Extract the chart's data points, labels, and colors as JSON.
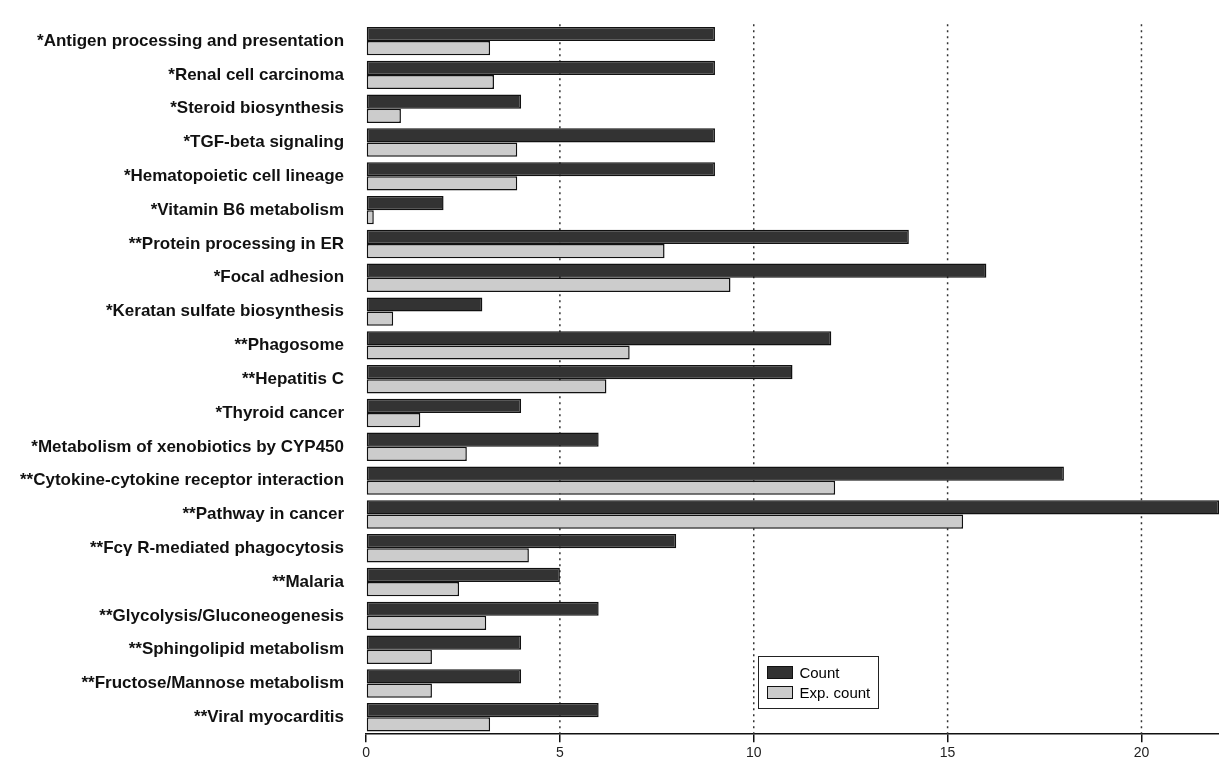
{
  "chart_data": {
    "type": "bar",
    "orientation": "horizontal",
    "categories": [
      "*Antigen processing and presentation",
      "*Renal cell carcinoma",
      "*Steroid biosynthesis",
      "*TGF-beta signaling",
      "*Hematopoietic cell lineage",
      "*Vitamin B6 metabolism",
      "**Protein processing in ER",
      "*Focal adhesion",
      "*Keratan sulfate biosynthesis",
      "**Phagosome",
      "**Hepatitis C",
      "*Thyroid cancer",
      "*Metabolism of xenobiotics by CYP450",
      "**Cytokine-cytokine receptor interaction",
      "**Pathway in cancer",
      "**Fcγ R-mediated phagocytosis",
      "**Malaria",
      "**Glycolysis/Gluconeogenesis",
      "**Sphingolipid metabolism",
      "**Fructose/Mannose metabolism",
      "**Viral myocarditis"
    ],
    "series": [
      {
        "name": "Count",
        "color": "#333333",
        "values": [
          9,
          9,
          4,
          9,
          9,
          2,
          14,
          16,
          3,
          12,
          11,
          4,
          6,
          18,
          22,
          8,
          5,
          6,
          4,
          4,
          6
        ]
      },
      {
        "name": "Exp. count",
        "color": "#cccccc",
        "values": [
          3.2,
          3.3,
          0.9,
          3.9,
          3.9,
          0.2,
          7.7,
          9.4,
          0.7,
          6.8,
          6.2,
          1.4,
          2.6,
          12.1,
          15.4,
          4.2,
          2.4,
          3.1,
          1.7,
          1.7,
          3.2
        ]
      }
    ],
    "xlim": [
      0,
      22
    ],
    "xticks": [
      0,
      5,
      10,
      15,
      20
    ],
    "grid": "x",
    "legend": "bottom"
  }
}
